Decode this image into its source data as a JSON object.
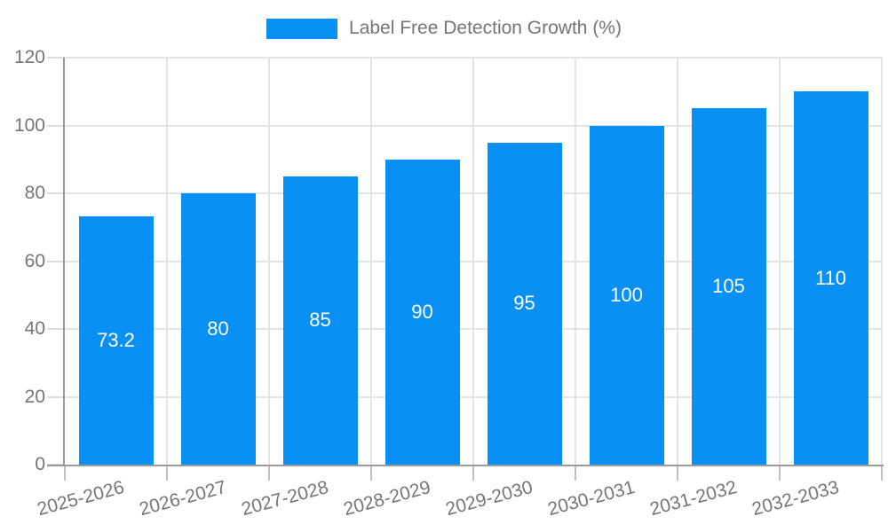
{
  "chart_data": {
    "type": "bar",
    "title": "",
    "legend": "Label Free Detection Growth (%)",
    "categories": [
      "2025-2026",
      "2026-2027",
      "2027-2028",
      "2028-2029",
      "2029-2030",
      "2030-2031",
      "2031-2032",
      "2032-2033"
    ],
    "values": [
      73.2,
      80,
      85,
      90,
      95,
      100,
      105,
      110
    ],
    "value_labels": [
      "73.2",
      "80",
      "85",
      "90",
      "95",
      "100",
      "105",
      "110"
    ],
    "ylim": [
      0,
      120
    ],
    "yticks": [
      0,
      20,
      40,
      60,
      80,
      100,
      120
    ],
    "grid": true,
    "legend_position": "top-center",
    "colors": {
      "bar": "#0890F4",
      "value_label": "#FFFFFF",
      "axis_text": "#757575",
      "axis_line": "#999999",
      "gridline": "#E4E4E4",
      "background": "#FFFFFF"
    }
  }
}
